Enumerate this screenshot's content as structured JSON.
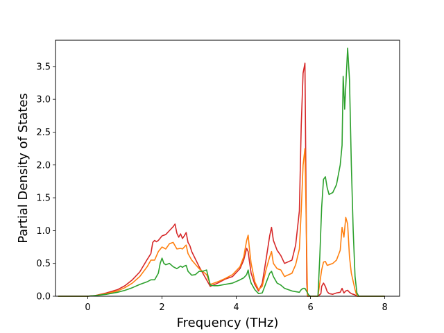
{
  "chart_data": {
    "type": "line",
    "title": "",
    "xlabel": "Frequency (THz)",
    "ylabel": "Partial Density of States",
    "xlim": [
      -0.87,
      8.4
    ],
    "ylim": [
      0,
      3.9
    ],
    "xticks": [
      0,
      2,
      4,
      6,
      8
    ],
    "xtick_labels": [
      "0",
      "2",
      "4",
      "6",
      "8"
    ],
    "yticks": [
      0.0,
      0.5,
      1.0,
      1.5,
      2.0,
      2.5,
      3.0,
      3.5
    ],
    "ytick_labels": [
      "0.0",
      "0.5",
      "1.0",
      "1.5",
      "2.0",
      "2.5",
      "3.0",
      "3.5"
    ],
    "grid": false,
    "legend": null,
    "series": [
      {
        "color": "#d62728",
        "x": [
          -0.8,
          0,
          0.2,
          0.5,
          0.8,
          1.0,
          1.2,
          1.4,
          1.6,
          1.7,
          1.75,
          1.8,
          1.85,
          1.9,
          2.0,
          2.1,
          2.2,
          2.3,
          2.35,
          2.4,
          2.45,
          2.5,
          2.55,
          2.6,
          2.65,
          2.7,
          2.75,
          2.8,
          3.0,
          3.2,
          3.3,
          3.5,
          3.7,
          3.9,
          4.1,
          4.2,
          4.28,
          4.32,
          4.35,
          4.4,
          4.5,
          4.6,
          4.7,
          4.8,
          4.9,
          4.95,
          5.0,
          5.1,
          5.2,
          5.3,
          5.5,
          5.6,
          5.7,
          5.75,
          5.8,
          5.85,
          5.9,
          5.92,
          5.95,
          6.0,
          6.2,
          6.28,
          6.3,
          6.35,
          6.4,
          6.45,
          6.5,
          6.6,
          6.7,
          6.8,
          6.85,
          6.9,
          6.95,
          7.0,
          7.05,
          7.1,
          7.2,
          7.25,
          7.3,
          8.0
        ],
        "y": [
          0,
          0,
          0.01,
          0.05,
          0.1,
          0.16,
          0.25,
          0.37,
          0.56,
          0.65,
          0.82,
          0.85,
          0.83,
          0.85,
          0.92,
          0.94,
          1.0,
          1.06,
          1.1,
          0.96,
          0.9,
          0.95,
          0.88,
          0.92,
          0.97,
          0.82,
          0.77,
          0.68,
          0.45,
          0.25,
          0.15,
          0.2,
          0.26,
          0.3,
          0.42,
          0.55,
          0.73,
          0.68,
          0.55,
          0.35,
          0.18,
          0.08,
          0.2,
          0.55,
          0.92,
          1.05,
          0.85,
          0.7,
          0.62,
          0.5,
          0.55,
          0.78,
          1.3,
          2.6,
          3.4,
          3.55,
          0.2,
          0,
          0,
          0,
          0,
          0.04,
          0.15,
          0.2,
          0.15,
          0.07,
          0.04,
          0.03,
          0.05,
          0.06,
          0.12,
          0.05,
          0.08,
          0.09,
          0.06,
          0.04,
          0.02,
          0,
          0,
          0
        ]
      },
      {
        "color": "#ff7f0e",
        "x": [
          -0.8,
          0,
          0.2,
          0.5,
          0.8,
          1.0,
          1.2,
          1.4,
          1.6,
          1.7,
          1.8,
          1.9,
          2.0,
          2.1,
          2.2,
          2.3,
          2.4,
          2.5,
          2.55,
          2.6,
          2.65,
          2.7,
          2.75,
          2.8,
          3.0,
          3.2,
          3.3,
          3.5,
          3.7,
          3.9,
          4.1,
          4.2,
          4.28,
          4.32,
          4.35,
          4.4,
          4.5,
          4.6,
          4.7,
          4.8,
          4.9,
          4.95,
          5.0,
          5.1,
          5.2,
          5.3,
          5.5,
          5.6,
          5.7,
          5.75,
          5.8,
          5.85,
          5.9,
          5.92,
          5.95,
          6.0,
          6.2,
          6.3,
          6.35,
          6.4,
          6.45,
          6.5,
          6.6,
          6.7,
          6.8,
          6.85,
          6.9,
          6.95,
          7.0,
          7.05,
          7.1,
          7.2,
          7.25,
          7.3,
          8.0
        ],
        "y": [
          0,
          0,
          0.01,
          0.04,
          0.08,
          0.13,
          0.2,
          0.3,
          0.45,
          0.55,
          0.55,
          0.68,
          0.75,
          0.72,
          0.8,
          0.82,
          0.72,
          0.73,
          0.72,
          0.75,
          0.78,
          0.65,
          0.6,
          0.55,
          0.42,
          0.33,
          0.18,
          0.22,
          0.27,
          0.33,
          0.45,
          0.6,
          0.85,
          0.93,
          0.75,
          0.5,
          0.22,
          0.1,
          0.15,
          0.4,
          0.6,
          0.68,
          0.5,
          0.42,
          0.4,
          0.3,
          0.35,
          0.48,
          0.72,
          1.3,
          2.0,
          2.25,
          0.6,
          0,
          0,
          0,
          0,
          0.4,
          0.52,
          0.53,
          0.47,
          0.48,
          0.5,
          0.55,
          0.7,
          1.05,
          0.9,
          1.2,
          1.1,
          0.6,
          0.35,
          0.1,
          0,
          0,
          0
        ]
      },
      {
        "color": "#2ca02c",
        "x": [
          -0.8,
          0,
          0.2,
          0.5,
          0.8,
          1.0,
          1.2,
          1.4,
          1.6,
          1.7,
          1.8,
          1.9,
          1.95,
          2.0,
          2.05,
          2.1,
          2.2,
          2.3,
          2.4,
          2.5,
          2.55,
          2.6,
          2.65,
          2.7,
          2.8,
          2.9,
          3.0,
          3.1,
          3.2,
          3.3,
          3.4,
          3.5,
          3.7,
          3.9,
          4.1,
          4.2,
          4.28,
          4.32,
          4.35,
          4.4,
          4.5,
          4.6,
          4.7,
          4.8,
          4.9,
          4.95,
          5.0,
          5.1,
          5.2,
          5.3,
          5.5,
          5.7,
          5.75,
          5.8,
          5.85,
          5.9,
          5.95,
          6.0,
          6.1,
          6.2,
          6.25,
          6.3,
          6.35,
          6.4,
          6.45,
          6.5,
          6.6,
          6.7,
          6.8,
          6.85,
          6.88,
          6.92,
          6.95,
          7.0,
          7.05,
          7.1,
          7.15,
          7.2,
          7.25,
          7.3,
          8.0
        ],
        "y": [
          0,
          0,
          0.01,
          0.03,
          0.06,
          0.09,
          0.13,
          0.18,
          0.22,
          0.25,
          0.25,
          0.35,
          0.5,
          0.58,
          0.5,
          0.48,
          0.5,
          0.45,
          0.42,
          0.46,
          0.44,
          0.46,
          0.47,
          0.38,
          0.32,
          0.33,
          0.38,
          0.38,
          0.4,
          0.17,
          0.16,
          0.16,
          0.18,
          0.2,
          0.25,
          0.28,
          0.33,
          0.4,
          0.3,
          0.2,
          0.1,
          0.04,
          0.05,
          0.2,
          0.35,
          0.38,
          0.3,
          0.2,
          0.17,
          0.12,
          0.08,
          0.06,
          0.1,
          0.12,
          0.12,
          0.07,
          0.02,
          0,
          0,
          0,
          0.6,
          1.35,
          1.78,
          1.82,
          1.65,
          1.55,
          1.58,
          1.7,
          2.0,
          2.3,
          3.35,
          2.85,
          3.2,
          3.78,
          3.3,
          2.0,
          1.0,
          0.3,
          0.05,
          0,
          0
        ]
      }
    ]
  }
}
